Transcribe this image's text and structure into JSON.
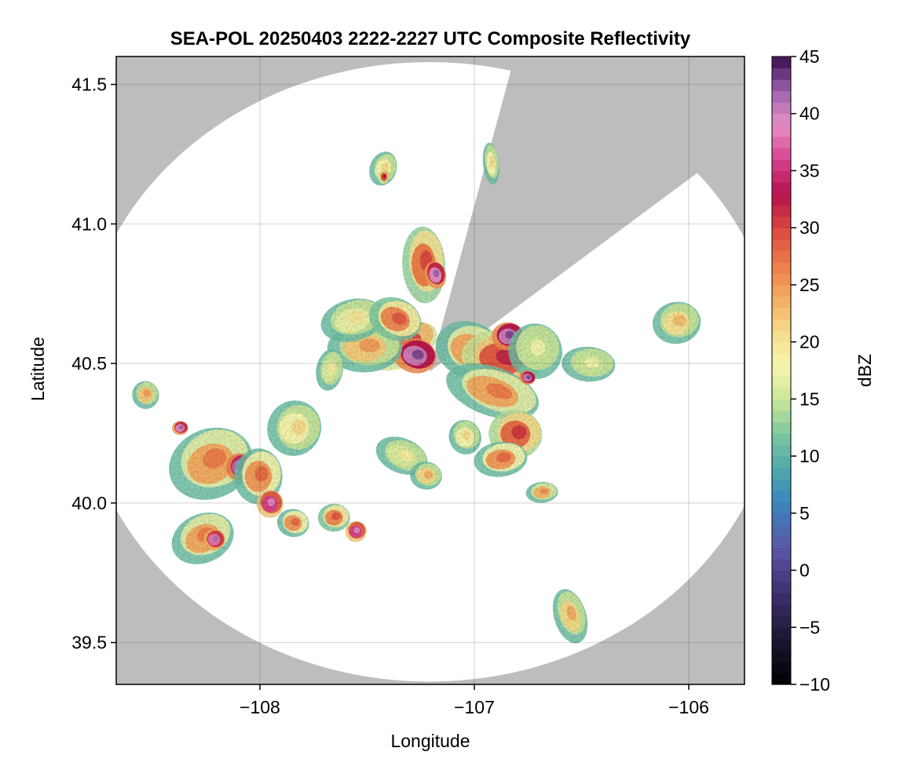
{
  "chart_data": {
    "type": "heatmap",
    "title": "SEA-POL 20250403 2222-2227 UTC Composite Reflectivity",
    "xlabel": "Longitude",
    "ylabel": "Latitude",
    "xlim": [
      -108.67,
      -105.74
    ],
    "ylim": [
      39.35,
      41.6
    ],
    "xticks": [
      {
        "value": -108,
        "label": "−108"
      },
      {
        "value": -107,
        "label": "−107"
      },
      {
        "value": -106,
        "label": "−106"
      }
    ],
    "yticks": [
      {
        "value": 39.5,
        "label": "39.5"
      },
      {
        "value": 40.0,
        "label": "40.0"
      },
      {
        "value": 40.5,
        "label": "40.5"
      },
      {
        "value": 41.0,
        "label": "41.0"
      },
      {
        "value": 41.5,
        "label": "41.5"
      }
    ],
    "grid": true,
    "background_color": "#bdbdbd",
    "coverage_color": "#ffffff",
    "radar": {
      "center_lon": -107.21,
      "center_lat": 40.47,
      "range_lon": 1.63,
      "range_lat": 1.11,
      "blocked_sectors": [
        {
          "from_lon": -106.84,
          "from_lat": 41.52,
          "to_lon": -106.07,
          "to_lat": 41.12
        }
      ]
    },
    "colorbar": {
      "label": "dBZ",
      "min": -10,
      "max": 45,
      "ticks": [
        -10,
        -5,
        0,
        5,
        10,
        15,
        20,
        25,
        30,
        35,
        40,
        45
      ],
      "tick_labels": [
        "−10",
        "−5",
        "0",
        "5",
        "10",
        "15",
        "20",
        "25",
        "30",
        "35",
        "40",
        "45"
      ],
      "colormap_stops": [
        {
          "value": -10,
          "color": "#000004"
        },
        {
          "value": -6,
          "color": "#1b1630"
        },
        {
          "value": -2,
          "color": "#3f2f6e"
        },
        {
          "value": 2,
          "color": "#5a57a8"
        },
        {
          "value": 6,
          "color": "#3b86be"
        },
        {
          "value": 9,
          "color": "#4faaaa"
        },
        {
          "value": 12,
          "color": "#7fc89f"
        },
        {
          "value": 15,
          "color": "#cbe79a"
        },
        {
          "value": 18,
          "color": "#f7f5ad"
        },
        {
          "value": 21,
          "color": "#f6da8a"
        },
        {
          "value": 24,
          "color": "#f3aa60"
        },
        {
          "value": 27,
          "color": "#ec7a48"
        },
        {
          "value": 30,
          "color": "#d9463f"
        },
        {
          "value": 33,
          "color": "#b4124c"
        },
        {
          "value": 36,
          "color": "#d6428f"
        },
        {
          "value": 39,
          "color": "#e891c4"
        },
        {
          "value": 42,
          "color": "#9b62ad"
        },
        {
          "value": 45,
          "color": "#3b0b4e"
        }
      ]
    },
    "echo_cells": [
      {
        "lon": -107.33,
        "lat": 40.57,
        "rlon": 0.14,
        "rlat": 0.06,
        "dbz": 30
      },
      {
        "lon": -107.27,
        "lat": 40.53,
        "rlon": 0.08,
        "rlat": 0.05,
        "dbz": 40
      },
      {
        "lon": -107.5,
        "lat": 40.56,
        "rlon": 0.14,
        "rlat": 0.07,
        "dbz": 22
      },
      {
        "lon": -107.56,
        "lat": 40.66,
        "rlon": 0.12,
        "rlat": 0.06,
        "dbz": 17
      },
      {
        "lon": -107.36,
        "lat": 40.66,
        "rlon": 0.1,
        "rlat": 0.06,
        "dbz": 26
      },
      {
        "lon": -107.67,
        "lat": 40.48,
        "rlon": 0.05,
        "rlat": 0.06,
        "dbz": 16
      },
      {
        "lon": -107.23,
        "lat": 40.86,
        "rlon": 0.08,
        "rlat": 0.11,
        "dbz": 27
      },
      {
        "lon": -107.18,
        "lat": 40.82,
        "rlon": 0.04,
        "rlat": 0.04,
        "dbz": 39
      },
      {
        "lon": -107.01,
        "lat": 40.55,
        "rlon": 0.13,
        "rlat": 0.08,
        "dbz": 24
      },
      {
        "lon": -106.86,
        "lat": 40.52,
        "rlon": 0.15,
        "rlat": 0.08,
        "dbz": 29
      },
      {
        "lon": -106.84,
        "lat": 40.6,
        "rlon": 0.06,
        "rlat": 0.04,
        "dbz": 40
      },
      {
        "lon": -106.71,
        "lat": 40.55,
        "rlon": 0.1,
        "rlat": 0.08,
        "dbz": 15
      },
      {
        "lon": -106.9,
        "lat": 40.4,
        "rlon": 0.18,
        "rlat": 0.07,
        "dbz": 24
      },
      {
        "lon": -106.8,
        "lat": 40.25,
        "rlon": 0.1,
        "rlat": 0.07,
        "dbz": 28
      },
      {
        "lon": -106.87,
        "lat": 40.16,
        "rlon": 0.1,
        "rlat": 0.05,
        "dbz": 25
      },
      {
        "lon": -107.04,
        "lat": 40.24,
        "rlon": 0.06,
        "rlat": 0.05,
        "dbz": 18
      },
      {
        "lon": -106.75,
        "lat": 40.45,
        "rlon": 0.03,
        "rlat": 0.02,
        "dbz": 40
      },
      {
        "lon": -106.46,
        "lat": 40.5,
        "rlon": 0.1,
        "rlat": 0.05,
        "dbz": 15
      },
      {
        "lon": -106.05,
        "lat": 40.65,
        "rlon": 0.09,
        "rlat": 0.06,
        "dbz": 20
      },
      {
        "lon": -108.22,
        "lat": 40.15,
        "rlon": 0.16,
        "rlat": 0.1,
        "dbz": 24
      },
      {
        "lon": -108.09,
        "lat": 40.13,
        "rlon": 0.05,
        "rlat": 0.04,
        "dbz": 41
      },
      {
        "lon": -108.0,
        "lat": 40.1,
        "rlon": 0.09,
        "rlat": 0.08,
        "dbz": 25
      },
      {
        "lon": -107.95,
        "lat": 40.0,
        "rlon": 0.05,
        "rlat": 0.04,
        "dbz": 36
      },
      {
        "lon": -108.26,
        "lat": 39.88,
        "rlon": 0.12,
        "rlat": 0.07,
        "dbz": 24
      },
      {
        "lon": -108.21,
        "lat": 39.87,
        "rlon": 0.04,
        "rlat": 0.03,
        "dbz": 38
      },
      {
        "lon": -108.37,
        "lat": 40.27,
        "rlon": 0.03,
        "rlat": 0.02,
        "dbz": 39
      },
      {
        "lon": -108.53,
        "lat": 40.39,
        "rlon": 0.05,
        "rlat": 0.04,
        "dbz": 22
      },
      {
        "lon": -107.83,
        "lat": 40.27,
        "rlon": 0.1,
        "rlat": 0.08,
        "dbz": 18
      },
      {
        "lon": -107.84,
        "lat": 39.93,
        "rlon": 0.06,
        "rlat": 0.04,
        "dbz": 25
      },
      {
        "lon": -107.65,
        "lat": 39.95,
        "rlon": 0.06,
        "rlat": 0.04,
        "dbz": 26
      },
      {
        "lon": -107.55,
        "lat": 39.9,
        "rlon": 0.04,
        "rlat": 0.03,
        "dbz": 36
      },
      {
        "lon": -107.33,
        "lat": 40.17,
        "rlon": 0.1,
        "rlat": 0.05,
        "dbz": 16
      },
      {
        "lon": -107.22,
        "lat": 40.1,
        "rlon": 0.06,
        "rlat": 0.04,
        "dbz": 21
      },
      {
        "lon": -106.68,
        "lat": 40.04,
        "rlon": 0.06,
        "rlat": 0.03,
        "dbz": 23
      },
      {
        "lon": -106.55,
        "lat": 39.6,
        "rlon": 0.06,
        "rlat": 0.08,
        "dbz": 21
      },
      {
        "lon": -107.42,
        "lat": 41.2,
        "rlon": 0.05,
        "rlat": 0.05,
        "dbz": 18
      },
      {
        "lon": -107.42,
        "lat": 41.17,
        "rlon": 0.02,
        "rlat": 0.02,
        "dbz": 30
      },
      {
        "lon": -106.92,
        "lat": 41.22,
        "rlon": 0.03,
        "rlat": 0.06,
        "dbz": 18
      }
    ]
  }
}
